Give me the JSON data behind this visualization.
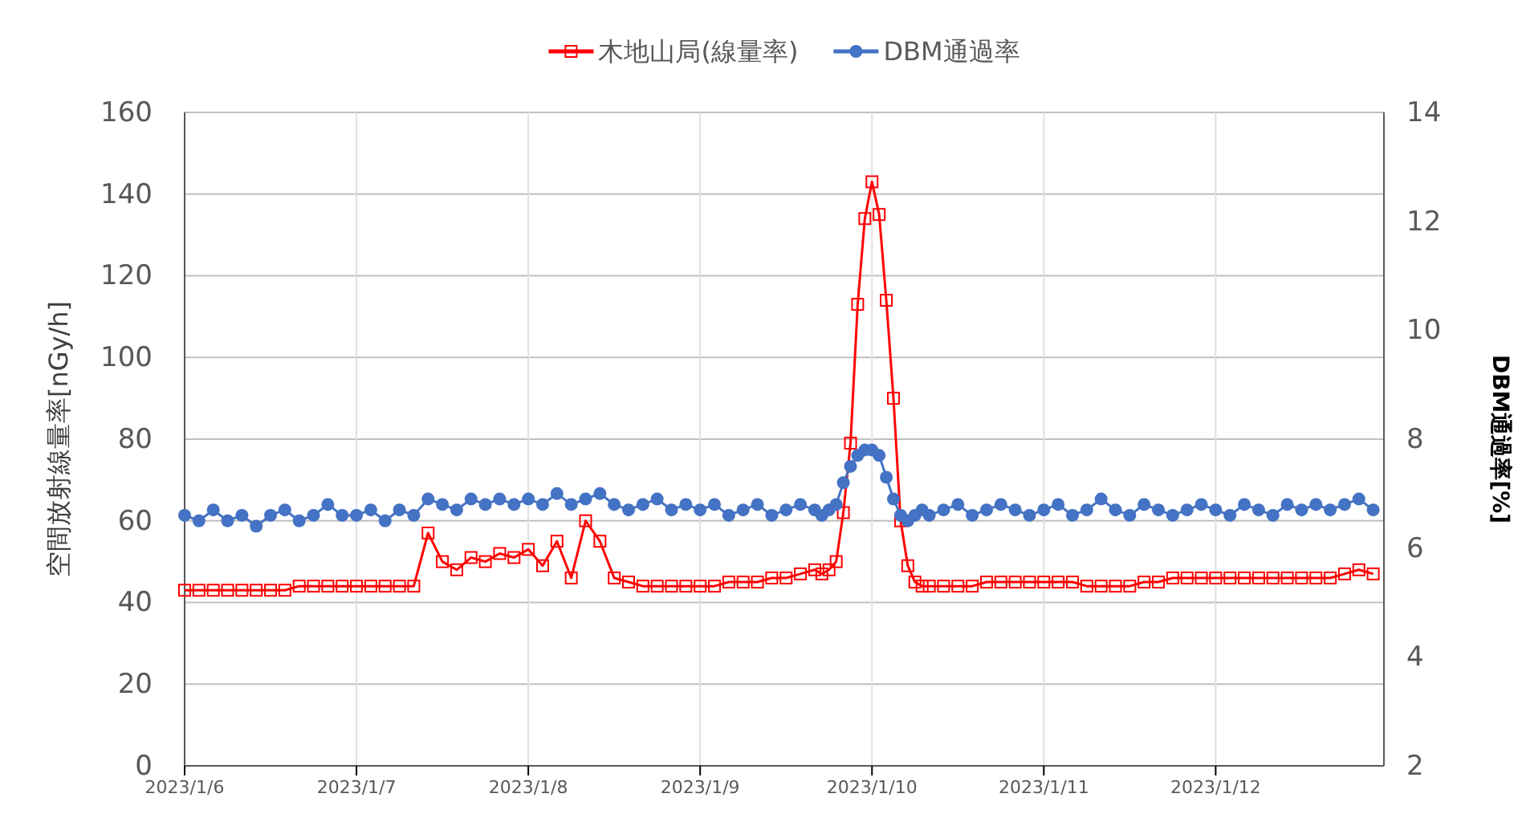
{
  "chart_data": {
    "type": "line",
    "ylabel": "空間放射線量率[nGy/h]",
    "y2label": "DBM通過率[%]",
    "x": [
      "2023-01-06T00:00",
      "2023-01-06T02:00",
      "2023-01-06T04:00",
      "2023-01-06T06:00",
      "2023-01-06T08:00",
      "2023-01-06T10:00",
      "2023-01-06T12:00",
      "2023-01-06T14:00",
      "2023-01-06T16:00",
      "2023-01-06T18:00",
      "2023-01-06T20:00",
      "2023-01-06T22:00",
      "2023-01-07T00:00",
      "2023-01-07T02:00",
      "2023-01-07T04:00",
      "2023-01-07T06:00",
      "2023-01-07T08:00",
      "2023-01-07T10:00",
      "2023-01-07T12:00",
      "2023-01-07T14:00",
      "2023-01-07T16:00",
      "2023-01-07T18:00",
      "2023-01-07T20:00",
      "2023-01-07T22:00",
      "2023-01-08T00:00",
      "2023-01-08T02:00",
      "2023-01-08T04:00",
      "2023-01-08T06:00",
      "2023-01-08T08:00",
      "2023-01-08T10:00",
      "2023-01-08T12:00",
      "2023-01-08T14:00",
      "2023-01-08T16:00",
      "2023-01-08T18:00",
      "2023-01-08T20:00",
      "2023-01-08T22:00",
      "2023-01-09T00:00",
      "2023-01-09T02:00",
      "2023-01-09T04:00",
      "2023-01-09T06:00",
      "2023-01-09T08:00",
      "2023-01-09T10:00",
      "2023-01-09T12:00",
      "2023-01-09T14:00",
      "2023-01-09T16:00",
      "2023-01-09T17:00",
      "2023-01-09T18:00",
      "2023-01-09T19:00",
      "2023-01-09T20:00",
      "2023-01-09T21:00",
      "2023-01-09T22:00",
      "2023-01-09T23:00",
      "2023-01-10T00:00",
      "2023-01-10T01:00",
      "2023-01-10T02:00",
      "2023-01-10T03:00",
      "2023-01-10T04:00",
      "2023-01-10T05:00",
      "2023-01-10T06:00",
      "2023-01-10T07:00",
      "2023-01-10T08:00",
      "2023-01-10T10:00",
      "2023-01-10T12:00",
      "2023-01-10T14:00",
      "2023-01-10T16:00",
      "2023-01-10T18:00",
      "2023-01-10T20:00",
      "2023-01-10T22:00",
      "2023-01-11T00:00",
      "2023-01-11T02:00",
      "2023-01-11T04:00",
      "2023-01-11T06:00",
      "2023-01-11T08:00",
      "2023-01-11T10:00",
      "2023-01-11T12:00",
      "2023-01-11T14:00",
      "2023-01-11T16:00",
      "2023-01-11T18:00",
      "2023-01-11T20:00",
      "2023-01-11T22:00",
      "2023-01-12T00:00",
      "2023-01-12T02:00",
      "2023-01-12T04:00",
      "2023-01-12T06:00",
      "2023-01-12T08:00",
      "2023-01-12T10:00",
      "2023-01-12T12:00",
      "2023-01-12T14:00",
      "2023-01-12T16:00",
      "2023-01-12T18:00",
      "2023-01-12T20:00",
      "2023-01-12T22:00"
    ],
    "series": [
      {
        "name": "木地山局(線量率)",
        "color": "#ff0000",
        "marker": "square",
        "values": [
          43,
          43,
          43,
          43,
          43,
          43,
          43,
          43,
          44,
          44,
          44,
          44,
          44,
          44,
          44,
          44,
          44,
          57,
          50,
          48,
          51,
          50,
          52,
          51,
          53,
          49,
          55,
          46,
          60,
          55,
          46,
          45,
          44,
          44,
          44,
          44,
          44,
          44,
          45,
          45,
          45,
          46,
          46,
          47,
          48,
          47,
          48,
          50,
          62,
          79,
          113,
          134,
          143,
          135,
          114,
          90,
          60,
          49,
          45,
          44,
          44,
          44,
          44,
          44,
          45,
          45,
          45,
          45,
          45,
          45,
          45,
          44,
          44,
          44,
          44,
          45,
          45,
          46,
          46,
          46,
          46,
          46,
          46,
          46,
          46,
          46,
          46,
          46,
          46,
          47,
          48,
          47
        ]
      },
      {
        "name": "DBM通過率",
        "color": "#4472c4",
        "marker": "circle",
        "axis": "y2",
        "values": [
          6.6,
          6.5,
          6.7,
          6.5,
          6.6,
          6.4,
          6.6,
          6.7,
          6.5,
          6.6,
          6.8,
          6.6,
          6.6,
          6.7,
          6.5,
          6.7,
          6.6,
          6.9,
          6.8,
          6.7,
          6.9,
          6.8,
          6.9,
          6.8,
          6.9,
          6.8,
          7.0,
          6.8,
          6.9,
          7.0,
          6.8,
          6.7,
          6.8,
          6.9,
          6.7,
          6.8,
          6.7,
          6.8,
          6.6,
          6.7,
          6.8,
          6.6,
          6.7,
          6.8,
          6.7,
          6.6,
          6.7,
          6.8,
          7.2,
          7.5,
          7.7,
          7.8,
          7.8,
          7.7,
          7.3,
          6.9,
          6.6,
          6.5,
          6.6,
          6.7,
          6.6,
          6.7,
          6.8,
          6.6,
          6.7,
          6.8,
          6.7,
          6.6,
          6.7,
          6.8,
          6.6,
          6.7,
          6.9,
          6.7,
          6.6,
          6.8,
          6.7,
          6.6,
          6.7,
          6.8,
          6.7,
          6.6,
          6.8,
          6.7,
          6.6,
          6.8,
          6.7,
          6.8,
          6.7,
          6.8,
          6.9,
          6.7
        ]
      }
    ],
    "xlim": [
      "2023-01-06T00:00",
      "2023-01-12T23:30"
    ],
    "xticks": [
      {
        "value": "2023-01-06",
        "label": "2023/1/6"
      },
      {
        "value": "2023-01-07",
        "label": "2023/1/7"
      },
      {
        "value": "2023-01-08",
        "label": "2023/1/8"
      },
      {
        "value": "2023-01-09",
        "label": "2023/1/9"
      },
      {
        "value": "2023-01-10",
        "label": "2023/1/10"
      },
      {
        "value": "2023-01-11",
        "label": "2023/1/11"
      },
      {
        "value": "2023-01-12",
        "label": "2023/1/12"
      }
    ],
    "ylim": [
      0,
      160
    ],
    "yticks": [
      0,
      20,
      40,
      60,
      80,
      100,
      120,
      140,
      160
    ],
    "y2lim": [
      2,
      14
    ],
    "y2ticks": [
      2,
      4,
      6,
      8,
      10,
      12,
      14
    ],
    "grid": true,
    "legend": "top"
  }
}
